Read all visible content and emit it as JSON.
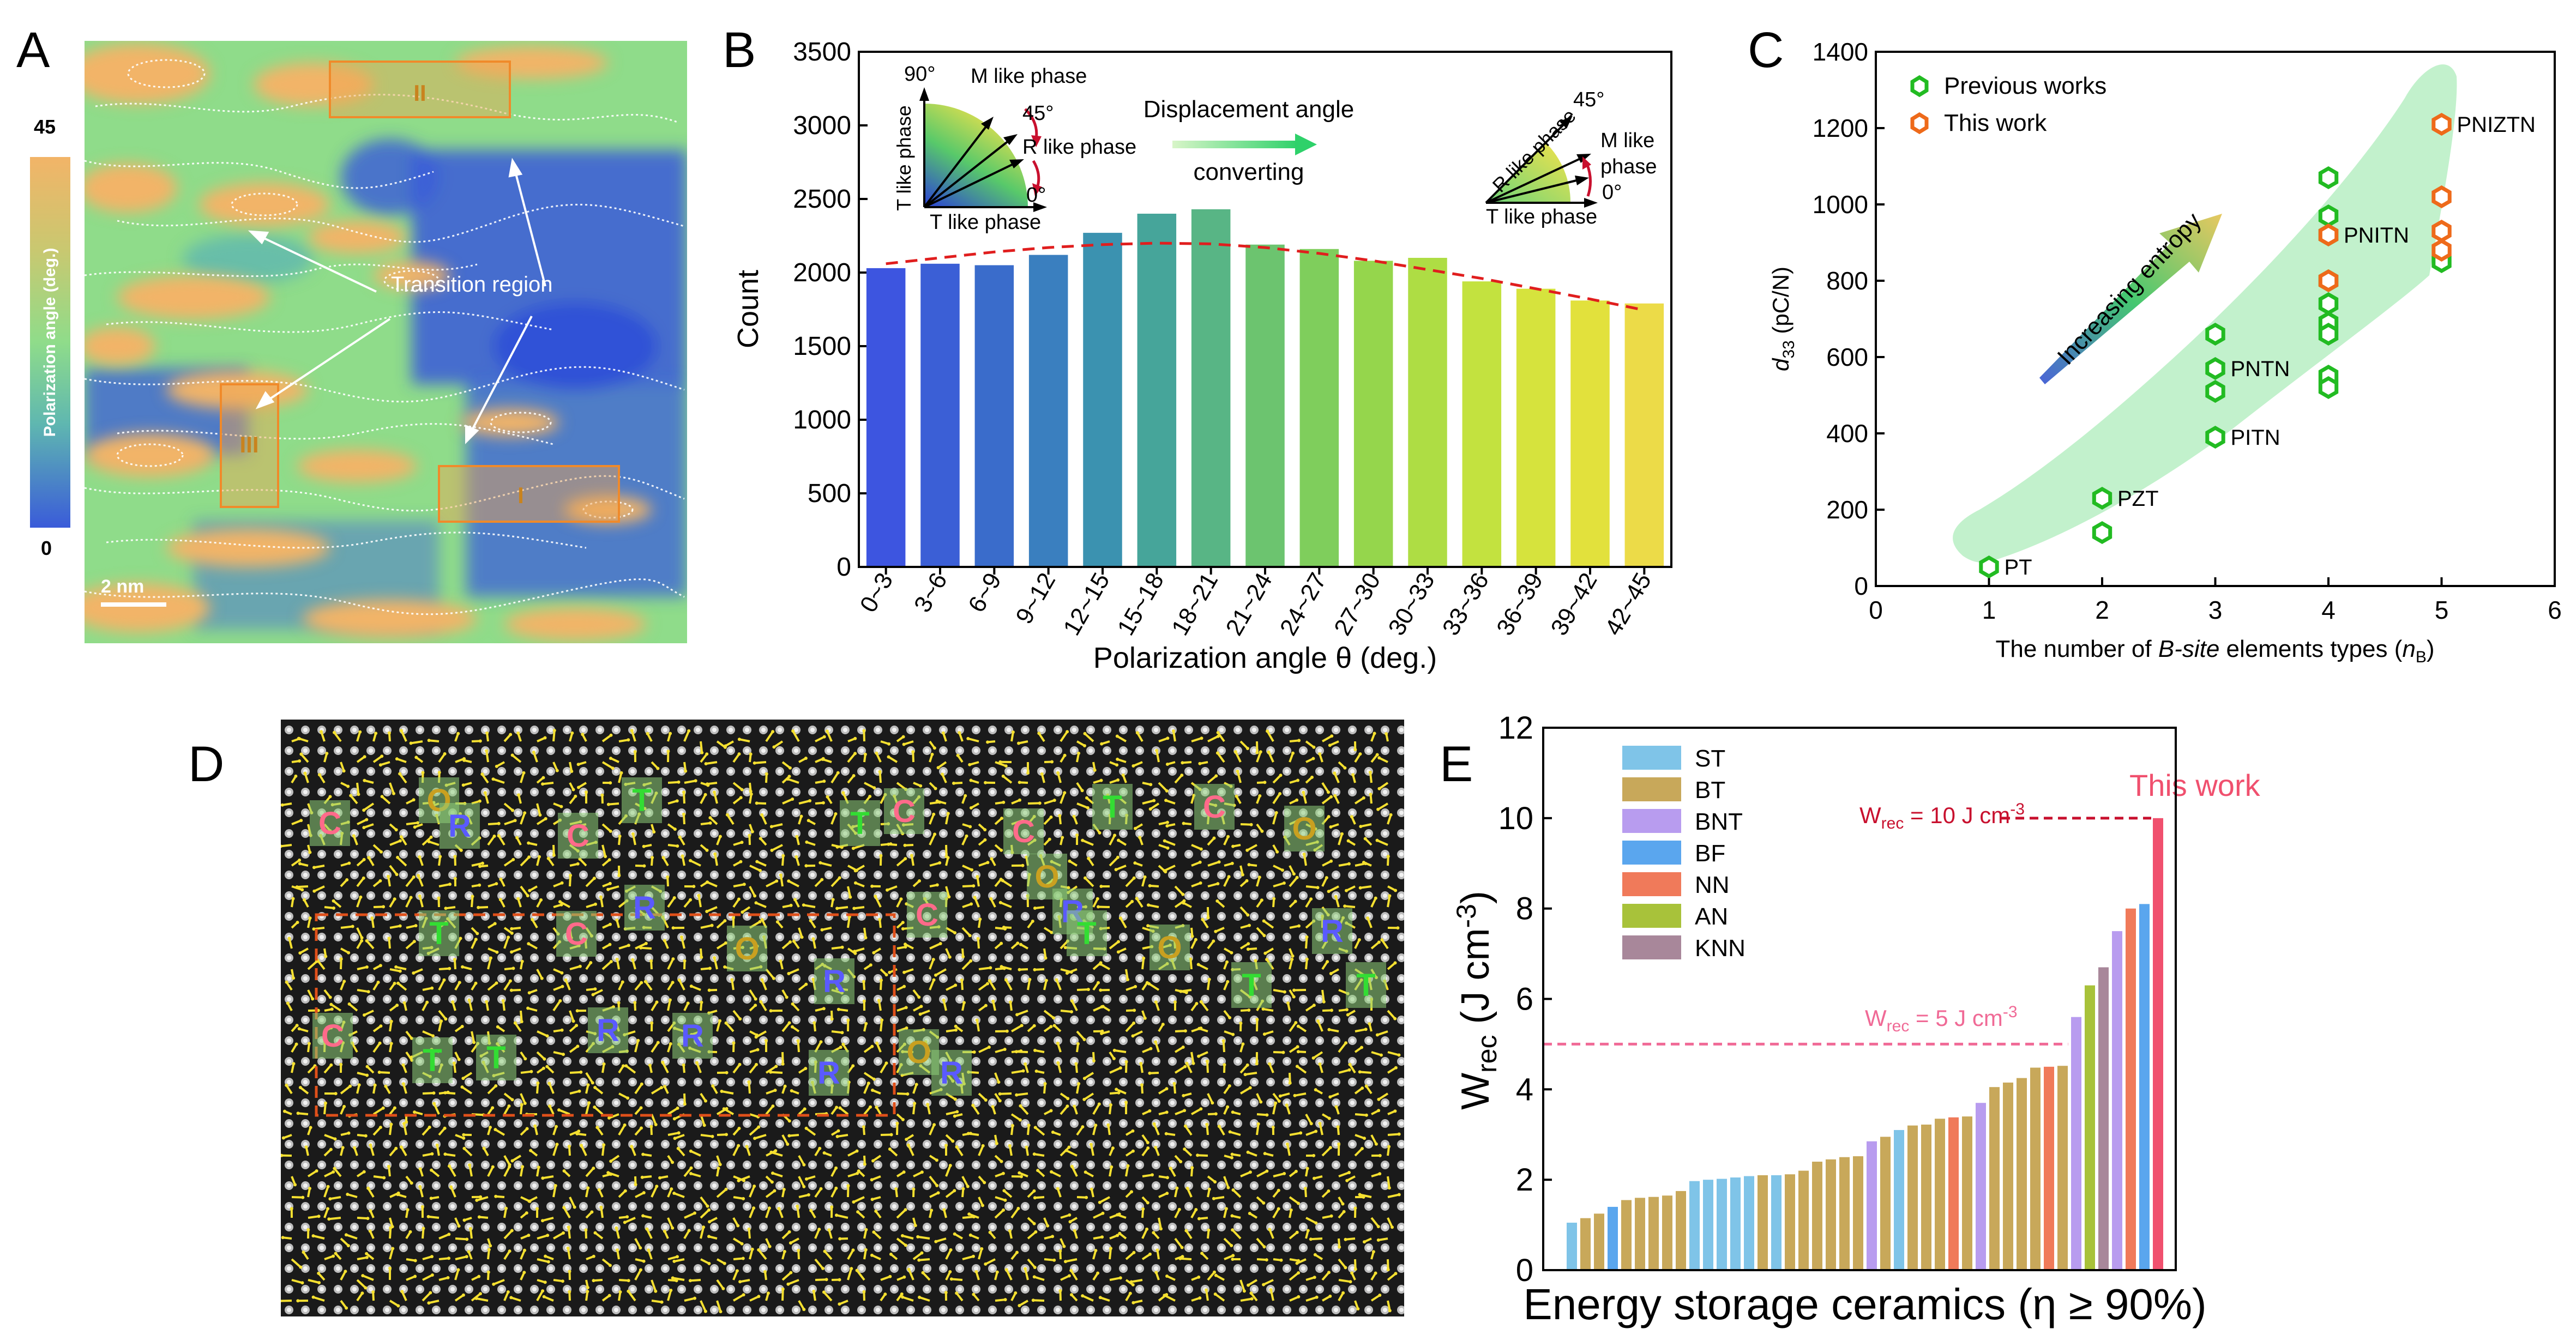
{
  "panel_labels": {
    "a": "A",
    "b": "B",
    "c": "C",
    "d": "D",
    "e": "E"
  },
  "panel_a": {
    "colorbar_max": "45",
    "colorbar_min": "0",
    "colorbar_label": "Polarization angle (deg.)",
    "region_labels": [
      "II",
      "III",
      "I"
    ],
    "annotation": "Transition region",
    "scale_bar": "2 nm",
    "colors": {
      "low": "#3a5bd9",
      "mid": "#8fdc8a",
      "high": "#f2b468",
      "box": "#f08a2a"
    }
  },
  "chart_data": [
    {
      "type": "bar",
      "categories": [
        "0~3",
        "3~6",
        "6~9",
        "9~12",
        "12~15",
        "15~18",
        "18~21",
        "21~24",
        "24~27",
        "27~30",
        "30~33",
        "33~36",
        "36~39",
        "39~42",
        "42~45"
      ],
      "values": [
        2030,
        2060,
        2050,
        2120,
        2270,
        2400,
        2430,
        2190,
        2160,
        2080,
        2100,
        1940,
        1890,
        1810,
        1790
      ],
      "trend": [
        2060,
        2100,
        2140,
        2170,
        2190,
        2200,
        2195,
        2170,
        2130,
        2080,
        2020,
        1960,
        1890,
        1820,
        1745
      ],
      "xlabel": "Polarization angle θ (deg.)",
      "ylabel": "Count",
      "ylim": [
        0,
        3500
      ],
      "yticks": [
        0,
        500,
        1000,
        1500,
        2000,
        2500,
        3000,
        3500
      ],
      "bar_colors": [
        "#3d55e0",
        "#3b5fd6",
        "#3a6ccb",
        "#3a7fbf",
        "#3b92b0",
        "#46a59a",
        "#58b585",
        "#6cc46f",
        "#7fce5c",
        "#95d64c",
        "#aedd44",
        "#c3e23f",
        "#d6e33d",
        "#e2e13c",
        "#ecdb48"
      ],
      "inset_left": {
        "t1": "90°",
        "t2": "M like phase",
        "t3": "45°",
        "t4": "R like phase",
        "t5": "0°",
        "t6": "T like phase",
        "t7": "T like phase"
      },
      "inset_mid": {
        "t1": "Displacement angle",
        "t2": "converting"
      },
      "inset_right": {
        "t1": "45°",
        "t2": "R like phase",
        "t3": "M like",
        "t4": "phase",
        "t5": "0°",
        "t6": "T like phase"
      }
    },
    {
      "type": "scatter",
      "xlabel_prefix": "The number of ",
      "xlabel_italic": "B-site",
      "xlabel_mid": " elements types (",
      "xlabel_n": "n",
      "xlabel_sub": "B",
      "xlabel_end": ")",
      "ylabel_main": "d",
      "ylabel_sub": "33",
      "ylabel_unit": " (pC/N)",
      "xlim": [
        0,
        6
      ],
      "ylim": [
        0,
        1400
      ],
      "xticks": [
        0,
        1,
        2,
        3,
        4,
        5,
        6
      ],
      "yticks": [
        0,
        200,
        400,
        600,
        800,
        1000,
        1200,
        1400
      ],
      "series": [
        {
          "name": "Previous works",
          "color": "#22bb22",
          "points": [
            [
              1,
              50
            ],
            [
              2,
              230
            ],
            [
              2,
              140
            ],
            [
              3,
              660
            ],
            [
              3,
              570
            ],
            [
              3,
              510
            ],
            [
              3,
              390
            ],
            [
              4,
              1070
            ],
            [
              4,
              970
            ],
            [
              4,
              920
            ],
            [
              4,
              800
            ],
            [
              4,
              740
            ],
            [
              4,
              690
            ],
            [
              4,
              660
            ],
            [
              4,
              550
            ],
            [
              4,
              520
            ],
            [
              5,
              850
            ]
          ]
        },
        {
          "name": "This work",
          "color": "#ee6a1a",
          "points": [
            [
              4,
              920
            ],
            [
              4,
              800
            ],
            [
              5,
              1210
            ],
            [
              5,
              1020
            ],
            [
              5,
              930
            ],
            [
              5,
              880
            ]
          ]
        }
      ],
      "point_labels": [
        {
          "text": "PT",
          "x": 1,
          "y": 50
        },
        {
          "text": "PZT",
          "x": 2,
          "y": 230
        },
        {
          "text": "PNTN",
          "x": 3,
          "y": 570
        },
        {
          "text": "PITN",
          "x": 3,
          "y": 390
        },
        {
          "text": "PNITN",
          "x": 4,
          "y": 920
        },
        {
          "text": "PNIZTN",
          "x": 5,
          "y": 1210
        }
      ],
      "annotation": "Increasing entropy"
    },
    {
      "type": "bar",
      "xlabel": "Energy storage ceramics (η ≥ 90%)",
      "ylabel_main": "W",
      "ylabel_sub": "rec",
      "ylabel_unit": " (J cm",
      "ylabel_exp": "-3",
      "ylabel_close": ")",
      "ylim": [
        0,
        12
      ],
      "yticks": [
        0,
        2,
        4,
        6,
        8,
        10,
        12
      ],
      "legend": [
        {
          "name": "ST",
          "color": "#7fc4e8"
        },
        {
          "name": "BT",
          "color": "#c8a85a"
        },
        {
          "name": "BNT",
          "color": "#b89cef"
        },
        {
          "name": "BF",
          "color": "#5aa6ee"
        },
        {
          "name": "NN",
          "color": "#f07a5a"
        },
        {
          "name": "AN",
          "color": "#a8c23a"
        },
        {
          "name": "KNN",
          "color": "#a8879a"
        }
      ],
      "values": [
        1.05,
        1.15,
        1.25,
        1.4,
        1.55,
        1.6,
        1.62,
        1.65,
        1.75,
        1.97,
        2.0,
        2.02,
        2.05,
        2.08,
        2.1,
        2.1,
        2.12,
        2.2,
        2.4,
        2.45,
        2.5,
        2.52,
        2.85,
        2.95,
        3.1,
        3.2,
        3.22,
        3.35,
        3.38,
        3.4,
        3.7,
        4.05,
        4.15,
        4.25,
        4.48,
        4.5,
        4.52,
        5.6,
        6.3,
        6.7,
        7.5,
        8.0,
        8.1,
        10.0
      ],
      "groups": [
        "ST",
        "BT",
        "BT",
        "BF",
        "BT",
        "BT",
        "BT",
        "BT",
        "BT",
        "ST",
        "ST",
        "ST",
        "ST",
        "ST",
        "BT",
        "ST",
        "BT",
        "BT",
        "BT",
        "BT",
        "BT",
        "BT",
        "BNT",
        "BT",
        "ST",
        "BT",
        "BT",
        "BT",
        "NN",
        "BT",
        "BNT",
        "BT",
        "BT",
        "BT",
        "BT",
        "NN",
        "BT",
        "BNT",
        "AN",
        "KNN",
        "BNT",
        "NN",
        "BF",
        "This work"
      ],
      "ref_line_high": {
        "value": 10,
        "label_main": "W",
        "label_sub": "rec",
        "label_rest": " = 10 J cm",
        "label_exp": "-3",
        "color": "#c8102e"
      },
      "ref_line_low": {
        "value": 5,
        "label_main": "W",
        "label_sub": "rec",
        "label_rest": " = 5 J cm",
        "label_exp": "-3",
        "color": "#f06a96"
      },
      "this_work_label": "This work",
      "this_work_color": "#f0506e"
    }
  ],
  "panel_d": {
    "phase_labels": [
      {
        "t": "O",
        "c": "#c9a020"
      },
      {
        "t": "T",
        "c": "#33dd33"
      },
      {
        "t": "C",
        "c": "#ff6a8a"
      },
      {
        "t": "T",
        "c": "#33dd33"
      },
      {
        "t": "C",
        "c": "#ff6a8a"
      },
      {
        "t": "C",
        "c": "#ff6a8a"
      },
      {
        "t": "R",
        "c": "#5a5aff"
      },
      {
        "t": "T",
        "c": "#33dd33"
      },
      {
        "t": "C",
        "c": "#ff6a8a"
      },
      {
        "t": "O",
        "c": "#c9a020"
      },
      {
        "t": "C",
        "c": "#ff6a8a"
      },
      {
        "t": "O",
        "c": "#c9a020"
      },
      {
        "t": "R",
        "c": "#5a5aff"
      },
      {
        "t": "R",
        "c": "#5a5aff"
      },
      {
        "t": "R",
        "c": "#5a5aff"
      },
      {
        "t": "C",
        "c": "#ff6a8a"
      },
      {
        "t": "T",
        "c": "#33dd33"
      },
      {
        "t": "T",
        "c": "#33dd33"
      },
      {
        "t": "C",
        "c": "#ff6a8a"
      },
      {
        "t": "O",
        "c": "#c9a020"
      },
      {
        "t": "O",
        "c": "#c9a020"
      },
      {
        "t": "T",
        "c": "#33dd33"
      },
      {
        "t": "R",
        "c": "#5a5aff"
      },
      {
        "t": "T",
        "c": "#33dd33"
      },
      {
        "t": "C",
        "c": "#ff6a8a"
      },
      {
        "t": "T",
        "c": "#33dd33"
      },
      {
        "t": "T",
        "c": "#33dd33"
      },
      {
        "t": "R",
        "c": "#5a5aff"
      },
      {
        "t": "R",
        "c": "#5a5aff"
      },
      {
        "t": "O",
        "c": "#c9a020"
      },
      {
        "t": "R",
        "c": "#5a5aff"
      },
      {
        "t": "R",
        "c": "#5a5aff"
      }
    ]
  }
}
